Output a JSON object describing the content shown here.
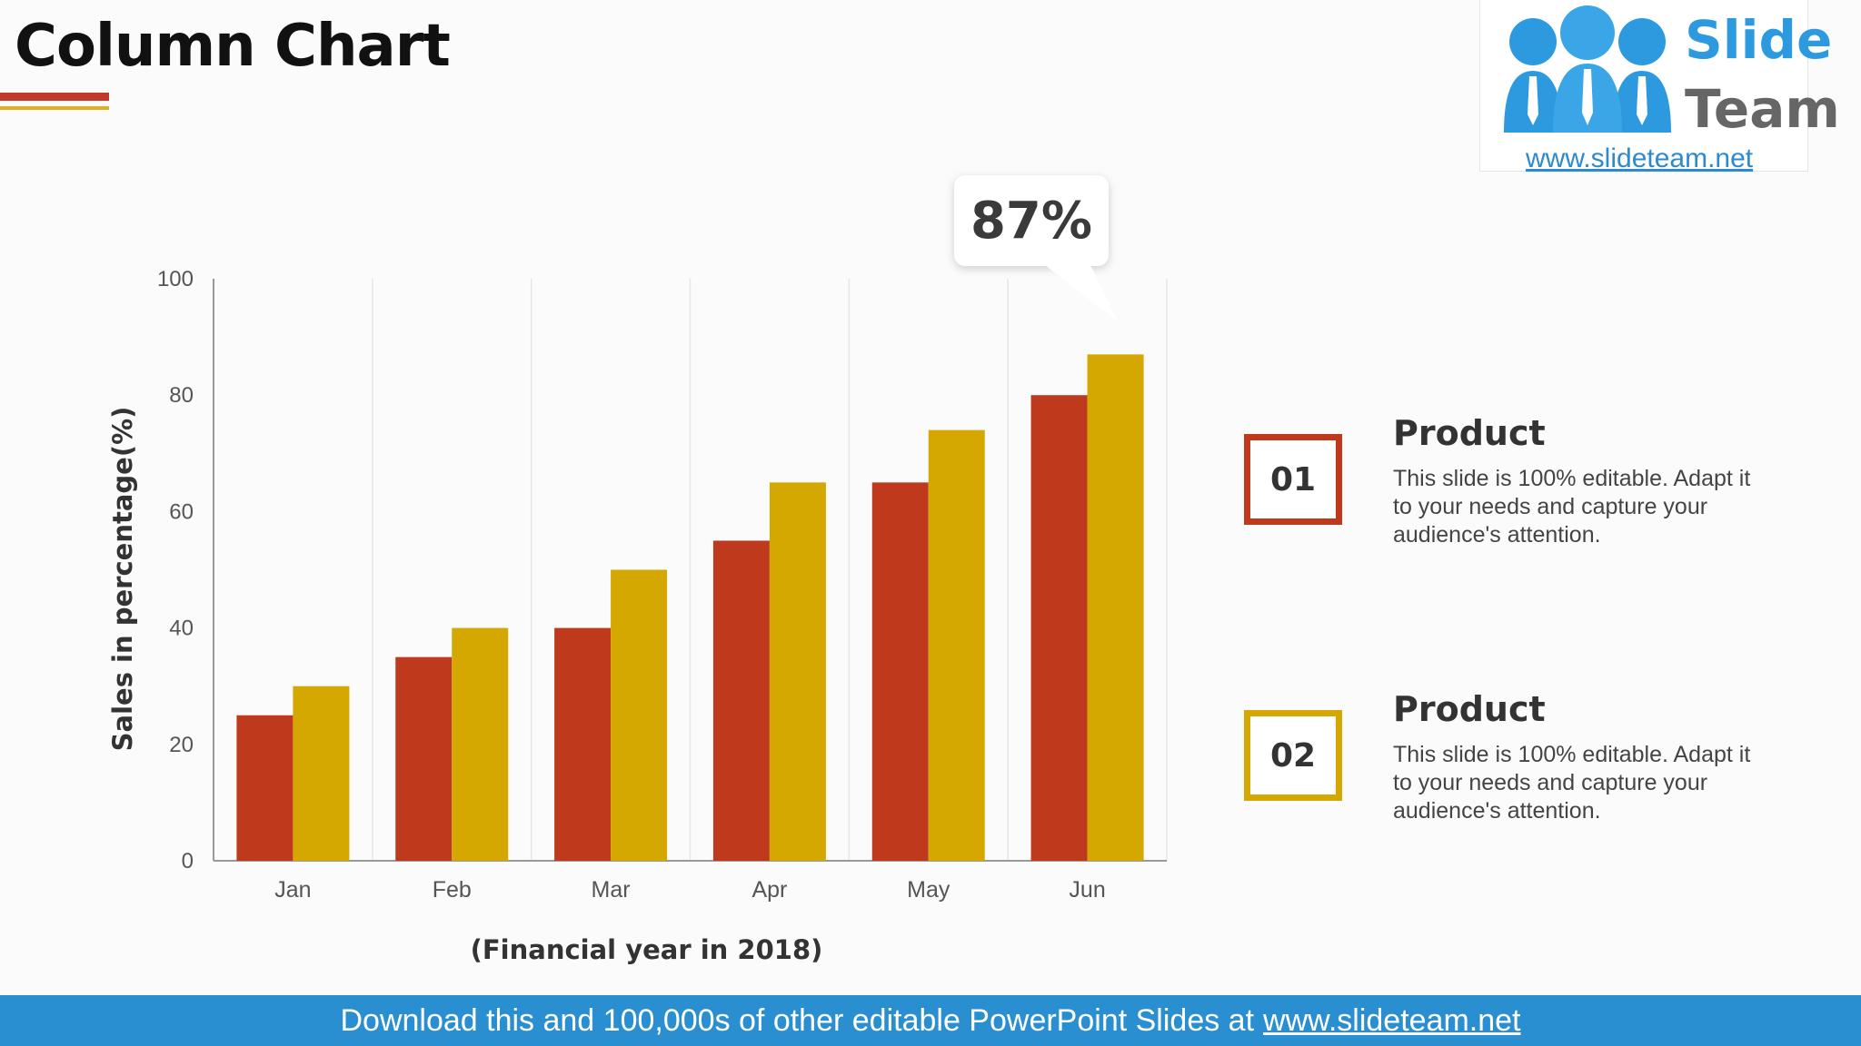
{
  "slide": {
    "title": "Column Chart"
  },
  "logo": {
    "brand_top": "Slide",
    "brand_bottom": "Team",
    "url": "www.slideteam.net",
    "colors": {
      "blue": "#2d9ae0",
      "gray": "#666666"
    }
  },
  "callout": {
    "text": "87%"
  },
  "chart_data": {
    "type": "bar",
    "categories": [
      "Jan",
      "Feb",
      "Mar",
      "Apr",
      "May",
      "Jun"
    ],
    "series": [
      {
        "values": [
          25,
          35,
          40,
          55,
          65,
          80
        ],
        "color": "#bf3a1c"
      },
      {
        "values": [
          30,
          40,
          50,
          65,
          74,
          87
        ],
        "color": "#d4a800"
      }
    ],
    "ylim": [
      0,
      100
    ],
    "yticks": [
      0,
      20,
      40,
      60,
      80,
      100
    ],
    "ylabel": "Sales in percentage(%)",
    "xlabel": "(Financial year in 2018)",
    "grid": "vertical"
  },
  "legend": [
    {
      "number": "01",
      "title": "Product",
      "desc_lines": [
        "This slide is 100% editable. Adapt it",
        "to your needs and capture your",
        "audience's attention."
      ],
      "color": "#bf3a1c"
    },
    {
      "number": "02",
      "title": "Product",
      "desc_lines": [
        "This slide is 100% editable. Adapt it",
        "to your needs and capture your",
        "audience's attention."
      ],
      "color": "#d4a800"
    }
  ],
  "footer": {
    "text": "Download this and 100,000s of other editable PowerPoint Slides at",
    "link": "www.slideteam.net",
    "color": "#2a8fd0"
  }
}
